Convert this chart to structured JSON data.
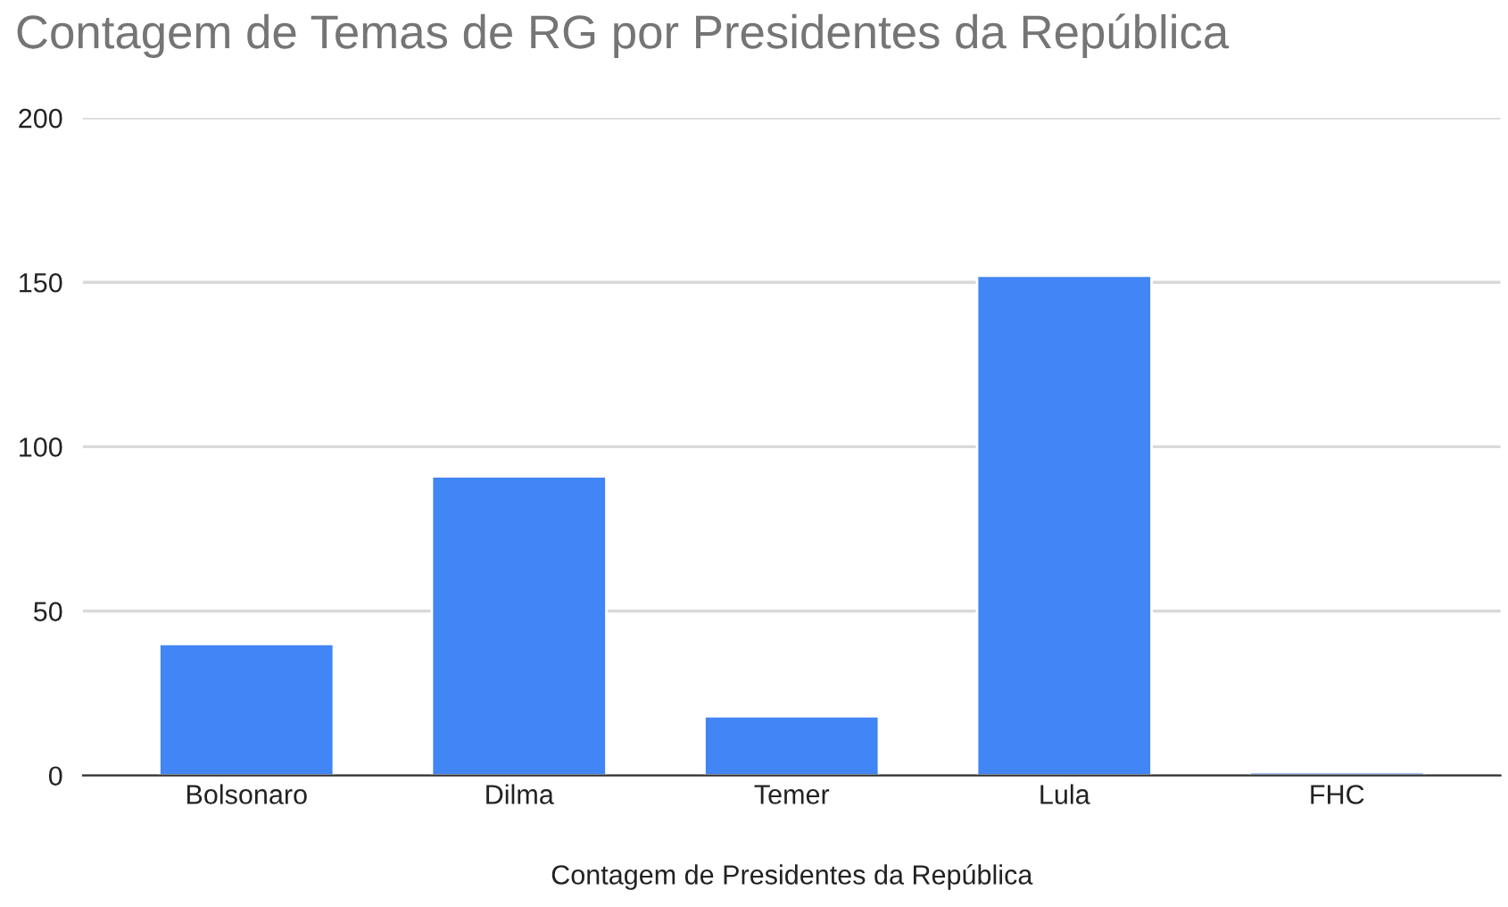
{
  "chart_data": {
    "type": "bar",
    "title": "Contagem de Temas de RG por Presidentes da República",
    "xlabel": "Contagem de Presidentes da República",
    "categories": [
      "Bolsonaro",
      "Dilma",
      "Temer",
      "Lula",
      "FHC"
    ],
    "values": [
      40,
      91,
      18,
      152,
      1
    ],
    "color": "#4285f4",
    "ylim": [
      0,
      200
    ],
    "yticks": [
      0,
      50,
      100,
      150,
      200
    ],
    "grid": "y"
  }
}
